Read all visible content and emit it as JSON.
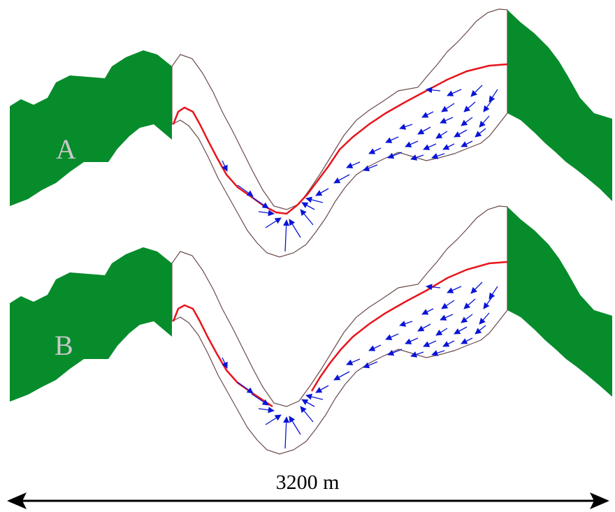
{
  "colors": {
    "terrain": "#078c2c",
    "outline": "#6b4a4a",
    "water_table": "#e8141c",
    "flow_arrows": "#0a14d6",
    "scale_bar": "#000000",
    "label_text": "#c8c8c8"
  },
  "panels": [
    {
      "id": "A",
      "label": "A"
    },
    {
      "id": "B",
      "label": "B"
    }
  ],
  "scale_bar": {
    "label": "3200 m"
  },
  "icons": {
    "scale_bar_left_end": "arrowhead-left-icon",
    "scale_bar_right_end": "arrowhead-right-icon"
  }
}
